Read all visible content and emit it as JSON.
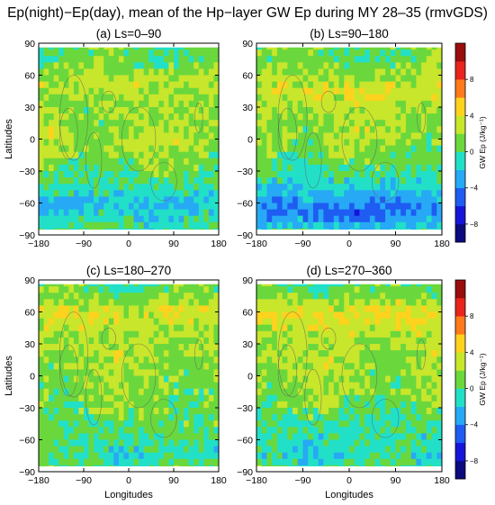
{
  "title": "Ep(night)−Ep(day), mean of the Hp−layer GW Ep during MY 28–35 (rmvGDS)",
  "chart_data": [
    {
      "type": "heatmap",
      "title": "(a) Ls=0–90",
      "xlabel": "",
      "ylabel": "Latitudes",
      "xlim": [
        -180,
        180
      ],
      "ylim": [
        -90,
        90
      ],
      "xticks": [
        "-180",
        "-90",
        "0",
        "90",
        "180"
      ],
      "yticks": [
        "90",
        "60",
        "30",
        "0",
        "-30",
        "-60",
        "-90"
      ],
      "lat_profile_mean": [
        {
          "lat": 75,
          "v": 0.5
        },
        {
          "lat": 52,
          "v": 2.8
        },
        {
          "lat": 30,
          "v": 1.5
        },
        {
          "lat": 0,
          "v": 2.5
        },
        {
          "lat": -20,
          "v": 1.0
        },
        {
          "lat": -40,
          "v": 0.2
        },
        {
          "lat": -60,
          "v": -2.2
        },
        {
          "lat": -80,
          "v": -0.6
        }
      ]
    },
    {
      "type": "heatmap",
      "title": "(b) Ls=90–180",
      "xlabel": "",
      "ylabel": "",
      "xlim": [
        -180,
        180
      ],
      "ylim": [
        -90,
        90
      ],
      "xticks": [
        "-180",
        "-90",
        "0",
        "90",
        "180"
      ],
      "yticks": [
        "90",
        "60",
        "30",
        "0",
        "-30",
        "-60",
        "-90"
      ],
      "lat_profile_mean": [
        {
          "lat": 75,
          "v": 0.8
        },
        {
          "lat": 45,
          "v": 3.5
        },
        {
          "lat": 20,
          "v": 2.0
        },
        {
          "lat": 0,
          "v": 2.0
        },
        {
          "lat": -30,
          "v": 0.3
        },
        {
          "lat": -55,
          "v": -3.0
        },
        {
          "lat": -68,
          "v": -5.0
        },
        {
          "lat": -85,
          "v": -1.5
        }
      ]
    },
    {
      "type": "heatmap",
      "title": "(c) Ls=180–270",
      "xlabel": "Longitudes",
      "ylabel": "Latitudes",
      "xlim": [
        -180,
        180
      ],
      "ylim": [
        -90,
        90
      ],
      "xticks": [
        "-180",
        "-90",
        "0",
        "90",
        "180"
      ],
      "yticks": [
        "90",
        "60",
        "30",
        "0",
        "-30",
        "-60",
        "-90"
      ],
      "lat_profile_mean": [
        {
          "lat": 80,
          "v": 0.5
        },
        {
          "lat": 60,
          "v": 3.5
        },
        {
          "lat": 40,
          "v": 2.5
        },
        {
          "lat": 0,
          "v": 1.8
        },
        {
          "lat": -30,
          "v": 1.2
        },
        {
          "lat": -55,
          "v": 0.4
        },
        {
          "lat": -70,
          "v": -0.8
        },
        {
          "lat": -85,
          "v": 0.0
        }
      ]
    },
    {
      "type": "heatmap",
      "title": "(d) Ls=270–360",
      "xlabel": "Longitudes",
      "ylabel": "",
      "xlim": [
        -180,
        180
      ],
      "ylim": [
        -90,
        90
      ],
      "xticks": [
        "-180",
        "-90",
        "0",
        "90",
        "180"
      ],
      "yticks": [
        "90",
        "60",
        "30",
        "0",
        "-30",
        "-60",
        "-90"
      ],
      "lat_profile_mean": [
        {
          "lat": 80,
          "v": 0.5
        },
        {
          "lat": 58,
          "v": 4.0
        },
        {
          "lat": 35,
          "v": 2.5
        },
        {
          "lat": 0,
          "v": 2.0
        },
        {
          "lat": -30,
          "v": 1.0
        },
        {
          "lat": -55,
          "v": -0.5
        },
        {
          "lat": -75,
          "v": -1.2
        },
        {
          "lat": -85,
          "v": 0.0
        }
      ]
    }
  ],
  "colorbars": [
    {
      "label": "GW Ep (J/kg⁻¹)",
      "ticks": [
        "8",
        "4",
        "0",
        "−4",
        "−8"
      ]
    },
    {
      "label": "GW Ep (J/kg⁻¹)",
      "ticks": [
        "8",
        "4",
        "0",
        "−4",
        "−8"
      ]
    }
  ],
  "color_scale": {
    "levels": [
      -10,
      -8,
      -6,
      -4,
      -2,
      0,
      2,
      4,
      6,
      8,
      10
    ],
    "colors": [
      "#0b0b7e",
      "#1515d8",
      "#1f5cf2",
      "#27a9f5",
      "#22e0c7",
      "#6ad83c",
      "#c8e62b",
      "#ffd21e",
      "#ff7a1a",
      "#e8251c",
      "#9a0d0d"
    ]
  }
}
